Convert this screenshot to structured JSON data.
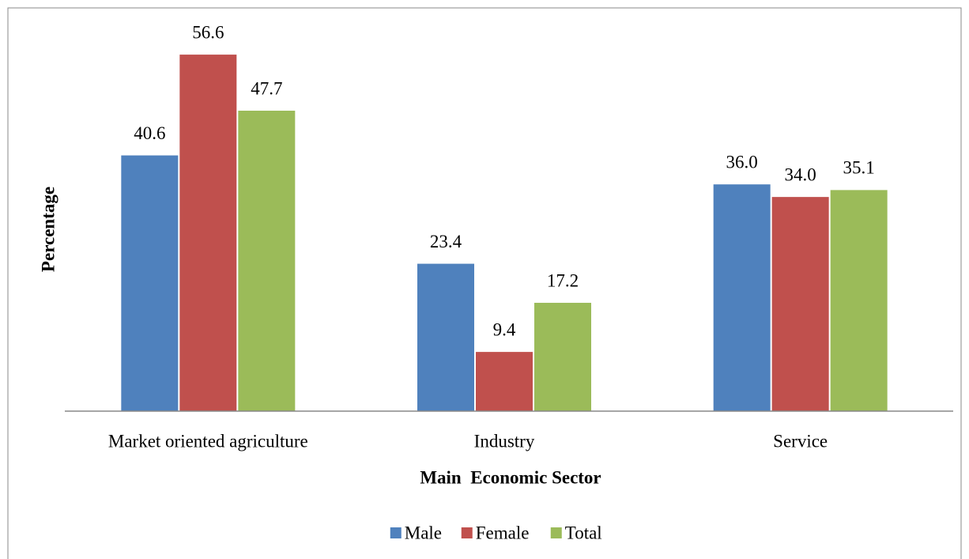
{
  "chart_data": {
    "type": "bar",
    "x_label": "Main  Economic Sector",
    "y_label": "Percentage",
    "categories": [
      "Market oriented agriculture",
      "Industry",
      "Service"
    ],
    "series": [
      {
        "name": "Male",
        "color": "#4f81bd",
        "values": [
          40.6,
          23.4,
          36.0
        ],
        "value_labels": [
          "40.6",
          "23.4",
          "36.0"
        ]
      },
      {
        "name": "Female",
        "color": "#c0504d",
        "values": [
          56.6,
          9.4,
          34.0
        ],
        "value_labels": [
          "56.6",
          "9.4",
          "34.0"
        ]
      },
      {
        "name": "Total",
        "color": "#9bbb59",
        "values": [
          47.7,
          17.2,
          35.1
        ],
        "value_labels": [
          "47.7",
          "17.2",
          "35.1"
        ]
      }
    ],
    "ylim": [
      0,
      60
    ],
    "legend": "bottom"
  }
}
